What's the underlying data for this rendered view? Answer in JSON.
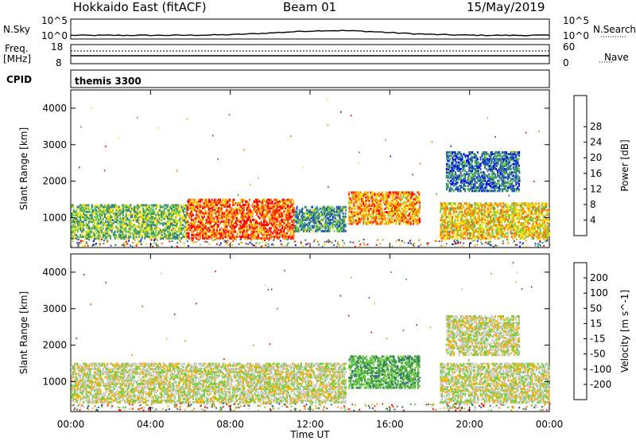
{
  "header": {
    "title_left": "Hokkaido East (fitACF)",
    "title_center": "Beam 01",
    "title_right": "15/May/2019"
  },
  "panels": {
    "nsky_label": "N.Sky",
    "nsearch_label": "N.Search",
    "nsky_ticks": [
      "10^5",
      "10^0"
    ],
    "nsearch_ticks": [
      "10^5",
      "10^0"
    ],
    "freq_label_line1": "Freq.",
    "freq_label_line2": "[MHz]",
    "freq_ticks": [
      "18",
      "8"
    ],
    "nave_label": "Nave",
    "nave_ticks": [
      "60",
      "0"
    ],
    "cpid_label": "CPID",
    "cpid_value": "themis 3300"
  },
  "chart_data": [
    {
      "type": "heatmap",
      "title": "",
      "xlabel": "Time UT",
      "ylabel": "Slant Range [km]",
      "x_ticks": [
        "00:00",
        "04:00",
        "08:00",
        "12:00",
        "16:00",
        "20:00",
        "00:00"
      ],
      "y_ticks": [
        "1000",
        "2000",
        "3000",
        "4000"
      ],
      "ylim": [
        180,
        4500
      ],
      "colorbar_label": "Power [dB]",
      "colorbar_ticks": [
        "4",
        "8",
        "12",
        "16",
        "20",
        "24",
        "28"
      ],
      "colorbar_colors": [
        "#0000ff",
        "#1f4fbf",
        "#2f7f7f",
        "#3fa05f",
        "#7fcf3f",
        "#ffdf00",
        "#ffa500",
        "#ff6f00",
        "#ff0000"
      ],
      "regions": [
        {
          "t0": 0.0,
          "t1": 5.8,
          "r0": 400,
          "r1": 1350,
          "level": 0.45
        },
        {
          "t0": 5.8,
          "t1": 11.2,
          "r0": 400,
          "r1": 1500,
          "level": 0.85
        },
        {
          "t0": 11.2,
          "t1": 13.8,
          "r0": 600,
          "r1": 1300,
          "level": 0.35
        },
        {
          "t0": 13.9,
          "t1": 17.5,
          "r0": 800,
          "r1": 1700,
          "level": 0.75
        },
        {
          "t0": 18.5,
          "t1": 24.0,
          "r0": 400,
          "r1": 1400,
          "level": 0.65
        },
        {
          "t0": 18.8,
          "t1": 22.5,
          "r0": 1700,
          "r1": 2800,
          "level": 0.25
        }
      ]
    },
    {
      "type": "heatmap",
      "title": "",
      "xlabel": "Time UT",
      "ylabel": "Slant Range [km]",
      "x_ticks": [
        "00:00",
        "04:00",
        "08:00",
        "12:00",
        "16:00",
        "20:00",
        "00:00"
      ],
      "y_ticks": [
        "1000",
        "2000",
        "3000",
        "4000"
      ],
      "ylim": [
        180,
        4500
      ],
      "colorbar_label": "Velocity [m s^-1]",
      "colorbar_ticks": [
        "200",
        "100",
        "50",
        "15",
        "-15",
        "-50",
        "-100",
        "-200"
      ],
      "colorbar_colors": [
        "#1f3fbf",
        "#2f6f6f",
        "#3f9f3f",
        "#6fcf3f",
        "#c8c8c0",
        "#f0b000",
        "#ff8000",
        "#ff4000",
        "#ff0000"
      ],
      "regions": [
        {
          "t0": 0.0,
          "t1": 13.8,
          "r0": 400,
          "r1": 1500,
          "level": 0.5
        },
        {
          "t0": 13.9,
          "t1": 17.5,
          "r0": 800,
          "r1": 1700,
          "level": 0.3
        },
        {
          "t0": 18.5,
          "t1": 24.0,
          "r0": 400,
          "r1": 1500,
          "level": 0.5
        },
        {
          "t0": 18.8,
          "t1": 22.5,
          "r0": 1700,
          "r1": 2800,
          "level": 0.5
        }
      ]
    }
  ]
}
